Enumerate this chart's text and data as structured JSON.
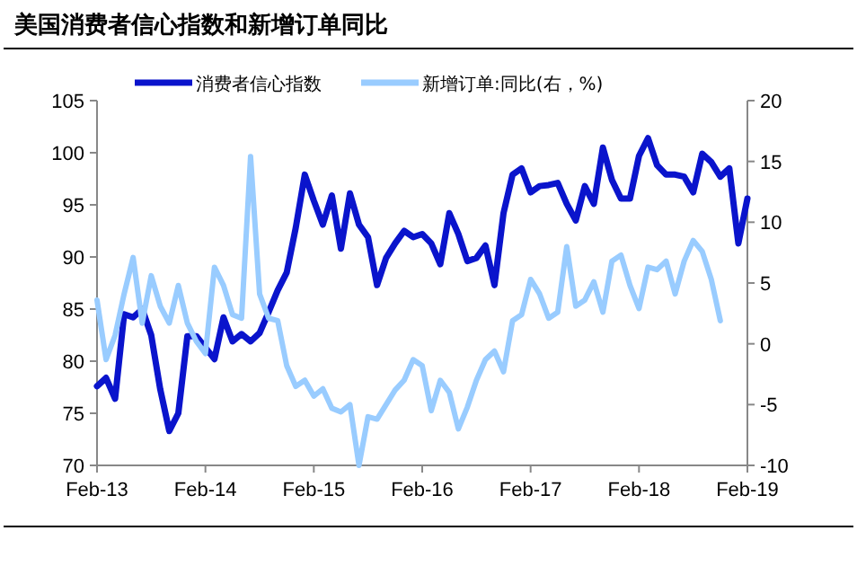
{
  "chart_data": {
    "type": "line",
    "title": "美国消费者信心指数和新增订单同比",
    "legend": "top",
    "x": [
      "2013-02",
      "2013-03",
      "2013-04",
      "2013-05",
      "2013-06",
      "2013-07",
      "2013-08",
      "2013-09",
      "2013-10",
      "2013-11",
      "2013-12",
      "2014-01",
      "2014-02",
      "2014-03",
      "2014-04",
      "2014-05",
      "2014-06",
      "2014-07",
      "2014-08",
      "2014-09",
      "2014-10",
      "2014-11",
      "2014-12",
      "2015-01",
      "2015-02",
      "2015-03",
      "2015-04",
      "2015-05",
      "2015-06",
      "2015-07",
      "2015-08",
      "2015-09",
      "2015-10",
      "2015-11",
      "2015-12",
      "2016-01",
      "2016-02",
      "2016-03",
      "2016-04",
      "2016-05",
      "2016-06",
      "2016-07",
      "2016-08",
      "2016-09",
      "2016-10",
      "2016-11",
      "2016-12",
      "2017-01",
      "2017-02",
      "2017-03",
      "2017-04",
      "2017-05",
      "2017-06",
      "2017-07",
      "2017-08",
      "2017-09",
      "2017-10",
      "2017-11",
      "2017-12",
      "2018-01",
      "2018-02",
      "2018-03",
      "2018-04",
      "2018-05",
      "2018-06",
      "2018-07",
      "2018-08",
      "2018-09",
      "2018-10",
      "2018-11",
      "2018-12",
      "2019-01",
      "2019-02"
    ],
    "series": [
      {
        "name": "消费者信心指数",
        "color": "#0a14cc",
        "values": [
          77.6,
          78.4,
          76.4,
          84.5,
          84.2,
          85.0,
          82.5,
          77.3,
          73.3,
          75.0,
          82.4,
          82.4,
          81.3,
          80.2,
          84.2,
          81.9,
          82.6,
          81.9,
          82.7,
          84.7,
          86.8,
          88.5,
          92.8,
          97.9,
          95.4,
          93.1,
          95.9,
          90.8,
          96.1,
          93.1,
          91.9,
          87.3,
          89.9,
          91.3,
          92.5,
          91.9,
          92.2,
          91.3,
          89.3,
          94.2,
          92.2,
          89.6,
          89.9,
          91.1,
          87.3,
          94.2,
          97.9,
          98.5,
          96.2,
          96.8,
          96.9,
          97.1,
          95.1,
          93.5,
          96.8,
          95.1,
          100.5,
          97.4,
          95.6,
          95.6,
          99.7,
          101.4,
          98.8,
          97.9,
          97.9,
          97.7,
          96.2,
          99.9,
          99.1,
          97.7,
          98.5,
          91.3,
          95.6
        ]
      },
      {
        "name": "新增订单:同比(右，%)",
        "color": "#99ccff",
        "axis": "y2",
        "values": [
          3.6,
          -1.3,
          0.7,
          4.1,
          7.1,
          1.7,
          5.6,
          3.1,
          1.7,
          4.8,
          1.7,
          0.2,
          -0.8,
          6.3,
          4.8,
          2.4,
          2.1,
          15.4,
          4.1,
          2.1,
          1.9,
          -1.8,
          -3.5,
          -3.0,
          -4.3,
          -3.7,
          -5.3,
          -5.6,
          -5.0,
          -10,
          -6.0,
          -6.2,
          -5.0,
          -3.8,
          -3.0,
          -1.3,
          -1.8,
          -5.5,
          -3.0,
          -4.0,
          -7.0,
          -5.2,
          -3.0,
          -1.3,
          -0.6,
          -2.3,
          1.9,
          2.4,
          5.3,
          4.1,
          2.1,
          2.6,
          8.0,
          3.1,
          3.6,
          5.1,
          2.6,
          6.8,
          7.3,
          4.8,
          2.9,
          6.3,
          6.1,
          6.8,
          4.1,
          6.8,
          8.5,
          7.6,
          5.3,
          1.9,
          null,
          null,
          null
        ]
      }
    ],
    "xlim": [
      "2013-02",
      "2019-02"
    ],
    "xticks": [
      {
        "value": "2013-02",
        "label": "Feb-13"
      },
      {
        "value": "2014-02",
        "label": "Feb-14"
      },
      {
        "value": "2015-02",
        "label": "Feb-15"
      },
      {
        "value": "2016-02",
        "label": "Feb-16"
      },
      {
        "value": "2017-02",
        "label": "Feb-17"
      },
      {
        "value": "2018-02",
        "label": "Feb-18"
      },
      {
        "value": "2019-02",
        "label": "Feb-19"
      }
    ],
    "ylim": [
      70,
      105
    ],
    "yticks": [
      70,
      75,
      80,
      85,
      90,
      95,
      100,
      105
    ],
    "y2lim": [
      -10,
      20
    ],
    "y2ticks": [
      -10,
      -5,
      0,
      5,
      10,
      15,
      20
    ]
  }
}
